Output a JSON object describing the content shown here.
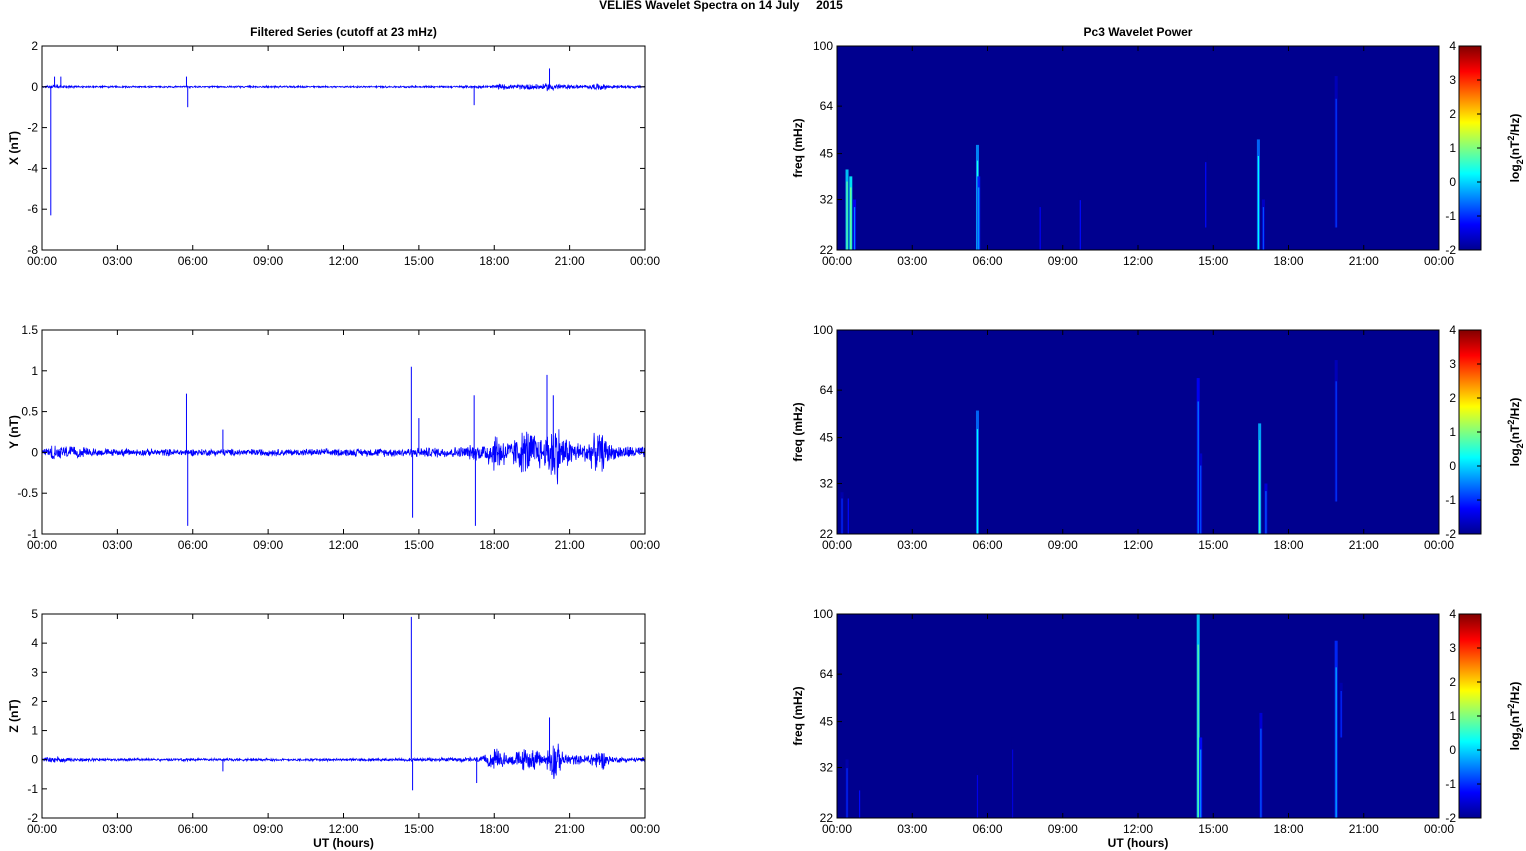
{
  "figure": {
    "title": "VELIES Wavelet Spectra on 14 July     2015",
    "left_title": "Filtered Series (cutoff at 23 mHz)",
    "right_title": "Pc3 Wavelet Power",
    "xlabel": "UT (hours)",
    "freq_label": "freq (mHz)",
    "colorbar_label": "log2(nT2/Hz)"
  },
  "colors": {
    "trace": "#0000ff",
    "background": "#00008f"
  },
  "chart_data": [
    {
      "type": "line",
      "title": "Filtered Series (cutoff at 23 mHz)",
      "ylabel": "X (nT)",
      "xlabel": "",
      "xlim": [
        0,
        24
      ],
      "ylim": [
        -8,
        2
      ],
      "yticks": [
        2,
        0,
        -2,
        -4,
        -6,
        -8
      ],
      "xticklabels": [
        "00:00",
        "03:00",
        "06:00",
        "09:00",
        "12:00",
        "15:00",
        "18:00",
        "21:00",
        "00:00"
      ],
      "grid": false,
      "noise": [
        [
          0,
          0.03
        ],
        [
          0.4,
          0.1
        ],
        [
          1.2,
          0.06
        ],
        [
          2.5,
          0.05
        ],
        [
          5,
          0.05
        ],
        [
          8,
          0.05
        ],
        [
          11,
          0.05
        ],
        [
          14,
          0.05
        ],
        [
          16.5,
          0.06
        ],
        [
          17.8,
          0.08
        ],
        [
          18.2,
          0.18
        ],
        [
          18.8,
          0.1
        ],
        [
          19.4,
          0.2
        ],
        [
          20,
          0.15
        ],
        [
          20.2,
          0.3
        ],
        [
          20.6,
          0.15
        ],
        [
          21.5,
          0.08
        ],
        [
          22.2,
          0.2
        ],
        [
          22.6,
          0.1
        ],
        [
          24,
          0.06
        ]
      ],
      "spikes": [
        [
          0.35,
          -6.3
        ],
        [
          0.5,
          0.5
        ],
        [
          0.75,
          0.5
        ],
        [
          5.75,
          0.5
        ],
        [
          5.8,
          -1.0
        ],
        [
          17.2,
          -0.9
        ],
        [
          20.2,
          0.9
        ]
      ]
    },
    {
      "type": "line",
      "ylabel": "Y (nT)",
      "xlabel": "",
      "xlim": [
        0,
        24
      ],
      "ylim": [
        -1,
        1.5
      ],
      "yticks": [
        1.5,
        1,
        0.5,
        0,
        -0.5,
        -1
      ],
      "xticklabels": [
        "00:00",
        "03:00",
        "06:00",
        "09:00",
        "12:00",
        "15:00",
        "18:00",
        "21:00",
        "00:00"
      ],
      "grid": false,
      "noise": [
        [
          0,
          0.05
        ],
        [
          0.5,
          0.12
        ],
        [
          1.2,
          0.08
        ],
        [
          2.5,
          0.05
        ],
        [
          5,
          0.05
        ],
        [
          8,
          0.05
        ],
        [
          11,
          0.05
        ],
        [
          14,
          0.06
        ],
        [
          16.5,
          0.08
        ],
        [
          17.5,
          0.12
        ],
        [
          18.1,
          0.3
        ],
        [
          18.6,
          0.15
        ],
        [
          19.3,
          0.35
        ],
        [
          20,
          0.2
        ],
        [
          20.4,
          0.55
        ],
        [
          20.7,
          0.25
        ],
        [
          21.5,
          0.12
        ],
        [
          22.2,
          0.3
        ],
        [
          22.7,
          0.1
        ],
        [
          24,
          0.08
        ]
      ],
      "spikes": [
        [
          5.75,
          0.72
        ],
        [
          5.8,
          -0.9
        ],
        [
          7.2,
          0.28
        ],
        [
          14.7,
          1.05
        ],
        [
          14.75,
          -0.8
        ],
        [
          15,
          0.42
        ],
        [
          17.2,
          0.7
        ],
        [
          17.25,
          -0.9
        ],
        [
          20.1,
          0.95
        ],
        [
          20.35,
          0.7
        ]
      ]
    },
    {
      "type": "line",
      "ylabel": "Z (nT)",
      "xlabel": "UT (hours)",
      "xlim": [
        0,
        24
      ],
      "ylim": [
        -2,
        5
      ],
      "yticks": [
        5,
        4,
        3,
        2,
        1,
        0,
        -1,
        -2
      ],
      "xticklabels": [
        "00:00",
        "03:00",
        "06:00",
        "09:00",
        "12:00",
        "15:00",
        "18:00",
        "21:00",
        "00:00"
      ],
      "grid": false,
      "noise": [
        [
          0,
          0.05
        ],
        [
          0.5,
          0.15
        ],
        [
          1.2,
          0.08
        ],
        [
          2.5,
          0.05
        ],
        [
          5,
          0.05
        ],
        [
          8,
          0.05
        ],
        [
          11,
          0.05
        ],
        [
          14,
          0.06
        ],
        [
          16.5,
          0.08
        ],
        [
          17.5,
          0.12
        ],
        [
          18.1,
          0.45
        ],
        [
          18.6,
          0.2
        ],
        [
          19.3,
          0.5
        ],
        [
          20,
          0.25
        ],
        [
          20.4,
          0.9
        ],
        [
          20.7,
          0.3
        ],
        [
          21.5,
          0.15
        ],
        [
          22.2,
          0.45
        ],
        [
          22.7,
          0.12
        ],
        [
          24,
          0.08
        ]
      ],
      "spikes": [
        [
          7.2,
          -0.4
        ],
        [
          14.7,
          4.9
        ],
        [
          14.75,
          -1.05
        ],
        [
          17.3,
          -0.8
        ],
        [
          20.2,
          1.45
        ]
      ]
    },
    {
      "type": "heatmap",
      "title": "Pc3 Wavelet Power",
      "ylabel": "freq (mHz)",
      "xlabel": "",
      "xlim": [
        0,
        24
      ],
      "ylim": [
        22,
        100
      ],
      "yscale": "log",
      "yticks": [
        100,
        64,
        45,
        32,
        22
      ],
      "xticklabels": [
        "00:00",
        "03:00",
        "06:00",
        "09:00",
        "12:00",
        "15:00",
        "18:00",
        "21:00",
        "00:00"
      ],
      "colorbar": {
        "ticks": [
          4,
          3,
          2,
          1,
          0,
          -1,
          -2
        ],
        "range": [
          -2,
          4
        ],
        "colormap": "jet",
        "label": "log2(nT2/Hz)"
      },
      "background": -2,
      "streaks": [
        [
          0.4,
          22,
          40,
          0.8
        ],
        [
          0.55,
          22,
          38,
          1.0
        ],
        [
          0.7,
          22,
          32,
          -0.5
        ],
        [
          5.6,
          22,
          48,
          0.4
        ],
        [
          5.65,
          22,
          38,
          -0.3
        ],
        [
          8.1,
          22,
          32,
          -1.3
        ],
        [
          9.7,
          22,
          34,
          -1.2
        ],
        [
          14.7,
          26,
          46,
          -1.2
        ],
        [
          16.8,
          22,
          50,
          0.2
        ],
        [
          17,
          22,
          32,
          -0.8
        ],
        [
          19.9,
          26,
          80,
          -0.9
        ]
      ]
    },
    {
      "type": "heatmap",
      "ylabel": "freq (mHz)",
      "xlabel": "",
      "xlim": [
        0,
        24
      ],
      "ylim": [
        22,
        100
      ],
      "yscale": "log",
      "yticks": [
        100,
        64,
        45,
        32,
        22
      ],
      "xticklabels": [
        "00:00",
        "03:00",
        "06:00",
        "09:00",
        "12:00",
        "15:00",
        "18:00",
        "21:00",
        "00:00"
      ],
      "colorbar": {
        "ticks": [
          4,
          3,
          2,
          1,
          0,
          -1,
          -2
        ],
        "range": [
          -2,
          4
        ],
        "colormap": "jet",
        "label": "log2(nT2/Hz)"
      },
      "background": -2,
      "streaks": [
        [
          0.2,
          22,
          30,
          -1
        ],
        [
          0.45,
          22,
          30,
          -1.2
        ],
        [
          5.6,
          22,
          55,
          0.2
        ],
        [
          14.4,
          22,
          70,
          -0.5
        ],
        [
          14.5,
          22,
          40,
          -0.8
        ],
        [
          16.85,
          22,
          50,
          0.6
        ],
        [
          17.1,
          22,
          32,
          -0.7
        ],
        [
          19.9,
          28,
          80,
          -0.9
        ]
      ]
    },
    {
      "type": "heatmap",
      "ylabel": "freq (mHz)",
      "xlabel": "UT (hours)",
      "xlim": [
        0,
        24
      ],
      "ylim": [
        22,
        100
      ],
      "yscale": "log",
      "yticks": [
        100,
        64,
        45,
        32,
        22
      ],
      "xticklabels": [
        "00:00",
        "03:00",
        "06:00",
        "09:00",
        "12:00",
        "15:00",
        "18:00",
        "21:00",
        "00:00"
      ],
      "colorbar": {
        "ticks": [
          4,
          3,
          2,
          1,
          0,
          -1,
          -2
        ],
        "range": [
          -2,
          4
        ],
        "colormap": "jet",
        "label": "log2(nT2/Hz)"
      },
      "background": -2,
      "streaks": [
        [
          0.4,
          22,
          34,
          -1
        ],
        [
          0.9,
          22,
          28,
          -1.2
        ],
        [
          5.6,
          22,
          32,
          -1.4
        ],
        [
          7,
          22,
          40,
          -1.5
        ],
        [
          14.4,
          22,
          100,
          0.8
        ],
        [
          14.5,
          22,
          40,
          -0.4
        ],
        [
          16.9,
          22,
          48,
          -0.7
        ],
        [
          19.9,
          22,
          82,
          -0.2
        ],
        [
          20.1,
          40,
          60,
          -1
        ]
      ]
    }
  ]
}
